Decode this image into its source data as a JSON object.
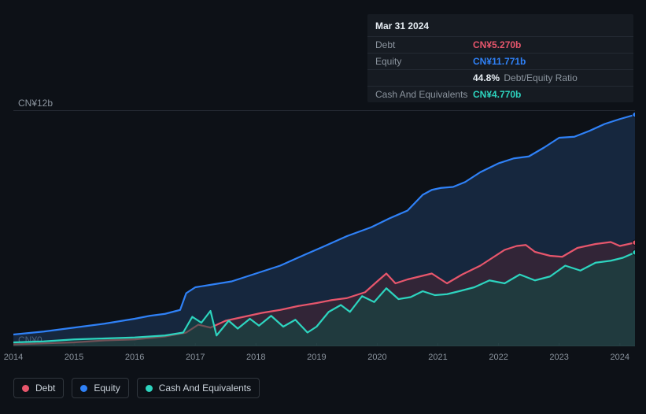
{
  "tooltip": {
    "date": "Mar 31 2024",
    "rows": {
      "debt": {
        "label": "Debt",
        "value": "CN¥5.270b"
      },
      "equity": {
        "label": "Equity",
        "value": "CN¥11.771b"
      },
      "ratio": {
        "value": "44.8%",
        "suffix": "Debt/Equity Ratio"
      },
      "cash": {
        "label": "Cash And Equivalents",
        "value": "CN¥4.770b"
      }
    }
  },
  "chart": {
    "type": "area",
    "background_color": "#0d1117",
    "grid_color": "#242a33",
    "y": {
      "min": 0,
      "max": 12,
      "ticks": [
        {
          "v": 12,
          "label": "CN¥12b"
        },
        {
          "v": 0,
          "label": "CN¥0"
        }
      ],
      "label_fontsize": 12
    },
    "x": {
      "min": 2014,
      "max": 2024.25,
      "ticks": [
        2014,
        2015,
        2016,
        2017,
        2018,
        2019,
        2020,
        2021,
        2022,
        2023,
        2024
      ],
      "label_fontsize": 11
    },
    "series": [
      {
        "id": "equity",
        "label": "Equity",
        "color": "#2f81f7",
        "fill_color": "#1f3a5f",
        "fill_opacity": 0.55,
        "line_width": 2.2,
        "end_marker": true,
        "points": [
          [
            2014.0,
            0.6
          ],
          [
            2014.5,
            0.75
          ],
          [
            2015.0,
            0.95
          ],
          [
            2015.5,
            1.15
          ],
          [
            2016.0,
            1.4
          ],
          [
            2016.25,
            1.55
          ],
          [
            2016.5,
            1.65
          ],
          [
            2016.75,
            1.85
          ],
          [
            2016.85,
            2.7
          ],
          [
            2017.0,
            3.0
          ],
          [
            2017.3,
            3.15
          ],
          [
            2017.6,
            3.3
          ],
          [
            2018.0,
            3.7
          ],
          [
            2018.4,
            4.1
          ],
          [
            2018.8,
            4.65
          ],
          [
            2019.1,
            5.05
          ],
          [
            2019.5,
            5.6
          ],
          [
            2019.9,
            6.05
          ],
          [
            2020.2,
            6.5
          ],
          [
            2020.5,
            6.9
          ],
          [
            2020.75,
            7.7
          ],
          [
            2020.9,
            7.95
          ],
          [
            2021.05,
            8.05
          ],
          [
            2021.25,
            8.1
          ],
          [
            2021.45,
            8.35
          ],
          [
            2021.7,
            8.85
          ],
          [
            2022.0,
            9.3
          ],
          [
            2022.25,
            9.55
          ],
          [
            2022.5,
            9.65
          ],
          [
            2022.75,
            10.1
          ],
          [
            2023.0,
            10.6
          ],
          [
            2023.25,
            10.65
          ],
          [
            2023.5,
            10.95
          ],
          [
            2023.75,
            11.3
          ],
          [
            2024.0,
            11.55
          ],
          [
            2024.25,
            11.77
          ]
        ]
      },
      {
        "id": "debt",
        "label": "Debt",
        "color": "#e7566c",
        "fill_color": "#4a2431",
        "fill_opacity": 0.55,
        "line_width": 2.2,
        "end_marker": true,
        "points": [
          [
            2014.0,
            0.1
          ],
          [
            2014.5,
            0.15
          ],
          [
            2015.0,
            0.2
          ],
          [
            2015.5,
            0.3
          ],
          [
            2016.0,
            0.35
          ],
          [
            2016.5,
            0.5
          ],
          [
            2016.85,
            0.7
          ],
          [
            2017.05,
            1.1
          ],
          [
            2017.25,
            0.95
          ],
          [
            2017.5,
            1.3
          ],
          [
            2017.8,
            1.5
          ],
          [
            2018.1,
            1.7
          ],
          [
            2018.4,
            1.85
          ],
          [
            2018.7,
            2.05
          ],
          [
            2019.0,
            2.2
          ],
          [
            2019.25,
            2.35
          ],
          [
            2019.5,
            2.45
          ],
          [
            2019.8,
            2.75
          ],
          [
            2020.0,
            3.3
          ],
          [
            2020.15,
            3.7
          ],
          [
            2020.3,
            3.2
          ],
          [
            2020.5,
            3.4
          ],
          [
            2020.7,
            3.55
          ],
          [
            2020.9,
            3.7
          ],
          [
            2021.15,
            3.2
          ],
          [
            2021.4,
            3.65
          ],
          [
            2021.7,
            4.1
          ],
          [
            2021.9,
            4.5
          ],
          [
            2022.1,
            4.9
          ],
          [
            2022.3,
            5.1
          ],
          [
            2022.45,
            5.15
          ],
          [
            2022.6,
            4.8
          ],
          [
            2022.85,
            4.6
          ],
          [
            2023.05,
            4.55
          ],
          [
            2023.3,
            5.0
          ],
          [
            2023.6,
            5.2
          ],
          [
            2023.85,
            5.3
          ],
          [
            2024.0,
            5.1
          ],
          [
            2024.25,
            5.27
          ]
        ]
      },
      {
        "id": "cash",
        "label": "Cash And Equivalents",
        "color": "#2dd4bf",
        "fill_color": "#134d46",
        "fill_opacity": 0.55,
        "line_width": 2.2,
        "end_marker": true,
        "points": [
          [
            2014.0,
            0.2
          ],
          [
            2014.5,
            0.25
          ],
          [
            2015.0,
            0.35
          ],
          [
            2015.5,
            0.4
          ],
          [
            2016.0,
            0.45
          ],
          [
            2016.5,
            0.55
          ],
          [
            2016.8,
            0.7
          ],
          [
            2016.95,
            1.5
          ],
          [
            2017.1,
            1.2
          ],
          [
            2017.25,
            1.8
          ],
          [
            2017.35,
            0.55
          ],
          [
            2017.55,
            1.3
          ],
          [
            2017.7,
            0.9
          ],
          [
            2017.9,
            1.4
          ],
          [
            2018.05,
            1.05
          ],
          [
            2018.25,
            1.55
          ],
          [
            2018.45,
            1.0
          ],
          [
            2018.65,
            1.35
          ],
          [
            2018.85,
            0.7
          ],
          [
            2019.0,
            1.0
          ],
          [
            2019.2,
            1.75
          ],
          [
            2019.4,
            2.1
          ],
          [
            2019.55,
            1.75
          ],
          [
            2019.75,
            2.55
          ],
          [
            2019.95,
            2.25
          ],
          [
            2020.15,
            2.95
          ],
          [
            2020.35,
            2.4
          ],
          [
            2020.55,
            2.5
          ],
          [
            2020.75,
            2.8
          ],
          [
            2020.95,
            2.6
          ],
          [
            2021.15,
            2.65
          ],
          [
            2021.35,
            2.8
          ],
          [
            2021.6,
            3.0
          ],
          [
            2021.85,
            3.35
          ],
          [
            2022.1,
            3.2
          ],
          [
            2022.35,
            3.65
          ],
          [
            2022.6,
            3.35
          ],
          [
            2022.85,
            3.55
          ],
          [
            2023.1,
            4.1
          ],
          [
            2023.35,
            3.85
          ],
          [
            2023.6,
            4.25
          ],
          [
            2023.85,
            4.35
          ],
          [
            2024.05,
            4.5
          ],
          [
            2024.25,
            4.77
          ]
        ]
      }
    ],
    "legend": [
      {
        "id": "debt",
        "label": "Debt",
        "color": "#e7566c"
      },
      {
        "id": "equity",
        "label": "Equity",
        "color": "#2f81f7"
      },
      {
        "id": "cash",
        "label": "Cash And Equivalents",
        "color": "#2dd4bf"
      }
    ]
  }
}
